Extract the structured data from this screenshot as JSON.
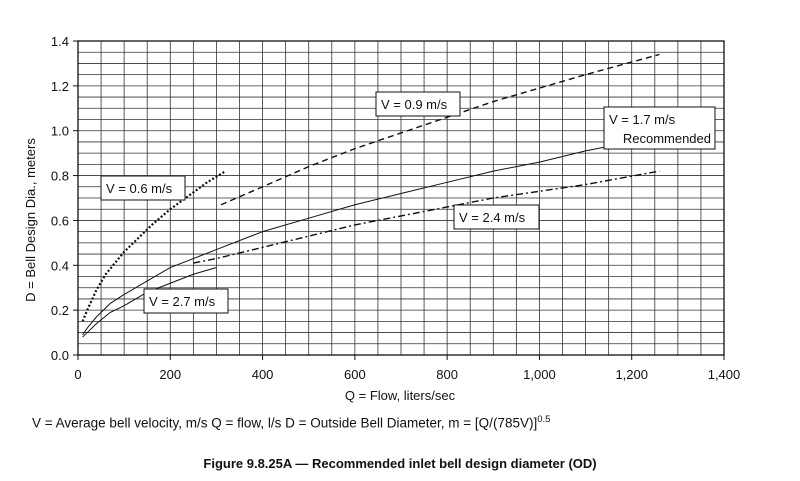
{
  "chart_data": {
    "type": "line",
    "xlabel": "Q = Flow, liters/sec",
    "ylabel": "D = Bell Design Dia., meters",
    "xlim": [
      0,
      1400
    ],
    "ylim": [
      0,
      1.4
    ],
    "grid": true,
    "x_ticks": [
      0,
      200,
      400,
      600,
      800,
      1000,
      1200,
      1400
    ],
    "x_tick_labels": [
      "0",
      "200",
      "400",
      "600",
      "800",
      "1,000",
      "1,200",
      "1,400"
    ],
    "y_ticks": [
      0,
      0.2,
      0.4,
      0.6,
      0.8,
      1.0,
      1.2,
      1.4
    ],
    "y_tick_labels": [
      "0.0",
      "0.2",
      "0.4",
      "0.6",
      "0.8",
      "1.0",
      "1.2",
      "1.4"
    ],
    "series": [
      {
        "name": "V = 0.6 m/s",
        "style": "dotted",
        "x": [
          10,
          20,
          40,
          60,
          80,
          100,
          130,
          160,
          200,
          240,
          280,
          320
        ],
        "y": [
          0.15,
          0.2,
          0.29,
          0.36,
          0.41,
          0.46,
          0.52,
          0.58,
          0.65,
          0.71,
          0.77,
          0.82
        ]
      },
      {
        "name": "V = 0.9 m/s",
        "style": "dashed",
        "x": [
          310,
          400,
          500,
          600,
          700,
          800,
          900,
          1000,
          1100,
          1260
        ],
        "y": [
          0.67,
          0.75,
          0.84,
          0.92,
          0.99,
          1.06,
          1.13,
          1.19,
          1.25,
          1.34
        ]
      },
      {
        "name": "V = 1.7 m/s Recommended",
        "style": "solid",
        "x": [
          10,
          20,
          40,
          70,
          100,
          150,
          200,
          300,
          400,
          500,
          600,
          700,
          800,
          900,
          1000,
          1100,
          1150
        ],
        "y": [
          0.09,
          0.12,
          0.17,
          0.23,
          0.27,
          0.33,
          0.39,
          0.47,
          0.55,
          0.61,
          0.67,
          0.72,
          0.77,
          0.82,
          0.86,
          0.91,
          0.93
        ]
      },
      {
        "name": "V = 2.4 m/s",
        "style": "dashdot",
        "x": [
          250,
          300,
          400,
          500,
          600,
          700,
          800,
          900,
          1000,
          1100,
          1260
        ],
        "y": [
          0.41,
          0.43,
          0.48,
          0.53,
          0.58,
          0.62,
          0.66,
          0.7,
          0.73,
          0.76,
          0.82
        ]
      },
      {
        "name": "V = 2.7 m/s",
        "style": "solid",
        "x": [
          10,
          20,
          40,
          70,
          100,
          150,
          200,
          250,
          300
        ],
        "y": [
          0.08,
          0.1,
          0.14,
          0.19,
          0.22,
          0.28,
          0.32,
          0.36,
          0.39
        ]
      }
    ],
    "annotations": [
      {
        "lines": [
          "V = 0.9 m/s"
        ]
      },
      {
        "lines": [
          "V = 1.7 m/s",
          "Recommended"
        ]
      },
      {
        "lines": [
          "V = 0.6 m/s"
        ]
      },
      {
        "lines": [
          "V = 2.4 m/s"
        ]
      },
      {
        "lines": [
          "V = 2.7 m/s"
        ]
      }
    ]
  },
  "footnote": {
    "text": "V  =  Average bell velocity, m/s   Q  =  flow, l/s   D  =  Outside Bell Diameter, m  =  [Q/(785V)]",
    "superscript": "0.5"
  },
  "caption": "Figure 9.8.25A — Recommended inlet bell design diameter (OD)"
}
